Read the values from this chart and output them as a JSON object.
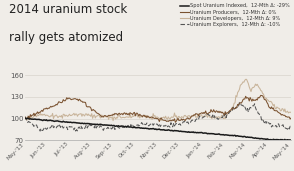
{
  "title_line1": "2014 uranium stock",
  "title_line2": "rally gets atomized",
  "title_fontsize": 8.5,
  "x_labels": [
    "May-'13",
    "Jun-'13",
    "Jul-'13",
    "Aug-'13",
    "Sep-'13",
    "Oct-'13",
    "Nov-'13",
    "Dec-'13",
    "Jan-'14",
    "Feb-'14",
    "Mar-'14",
    "Apr-'14",
    "May-'14"
  ],
  "ylim": [
    70,
    160
  ],
  "yticks": [
    70,
    100,
    130,
    160
  ],
  "legend_entries": [
    "Spot Uranium Indexed,  12-Mth Δ: -29%",
    "Uranium Producers,  12-Mth Δ: 0%",
    "Uranium Developers,  12-Mth Δ: 9%",
    "Uranium Explorers,  12-Mth Δ: -10%"
  ],
  "background_color": "#f0ede8",
  "line_colors": {
    "spot": "#1a1a1a",
    "producers": "#7a5230",
    "developers": "#c8b49a",
    "explorers": "#555555"
  },
  "grid_color": "#d8d4cc",
  "tick_color": "#555555"
}
